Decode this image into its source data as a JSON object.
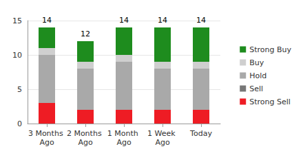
{
  "chart_data": {
    "type": "bar",
    "stacked": true,
    "grid": true,
    "legend": "right",
    "categories": [
      "3 Months Ago",
      "2 Months Ago",
      "1 Month Ago",
      "1 Week Ago",
      "Today"
    ],
    "series": [
      {
        "name": "Strong Sell",
        "color": "#ee1c24",
        "values": [
          3,
          2,
          2,
          2,
          2
        ]
      },
      {
        "name": "Sell",
        "color": "#777777",
        "values": [
          0,
          0,
          0,
          0,
          0
        ]
      },
      {
        "name": "Hold",
        "color": "#a9a9a9",
        "values": [
          7,
          6,
          7,
          6,
          6
        ]
      },
      {
        "name": "Buy",
        "color": "#cfcfcf",
        "values": [
          1,
          1,
          1,
          1,
          1
        ]
      },
      {
        "name": "Strong Buy",
        "color": "#1e8c1e",
        "values": [
          3,
          3,
          4,
          5,
          5
        ]
      }
    ],
    "totals": [
      14,
      12,
      14,
      14,
      14
    ],
    "ylim": [
      0,
      15
    ],
    "yticks": [
      0,
      5,
      10,
      15
    ]
  }
}
